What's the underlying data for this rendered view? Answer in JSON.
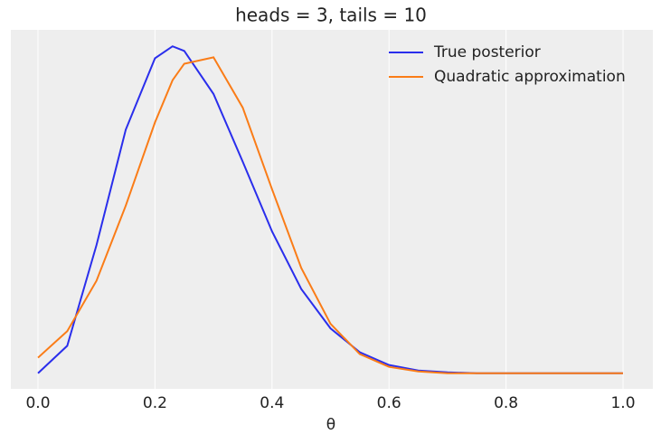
{
  "chart_data": {
    "type": "line",
    "title": "heads = 3, tails = 10",
    "x_label": "θ",
    "x": [
      0,
      0.05,
      0.1,
      0.15,
      0.2,
      0.23,
      0.25,
      0.3,
      0.35,
      0.4,
      0.45,
      0.5,
      0.55,
      0.6,
      0.65,
      0.7,
      0.75,
      0.8,
      0.85,
      0.9,
      0.95,
      1
    ],
    "series": [
      {
        "name": "True posterior",
        "color": "#2a2eec",
        "values": [
          0,
          0.3,
          1.4,
          2.66,
          3.44,
          3.57,
          3.52,
          3.05,
          2.31,
          1.55,
          0.92,
          0.49,
          0.23,
          0.09,
          0.03,
          0.01,
          0,
          0,
          0,
          0,
          0,
          0
        ]
      },
      {
        "name": "Quadratic approximation",
        "color": "#fa7c17",
        "values": [
          0.17,
          0.46,
          1.01,
          1.83,
          2.74,
          3.2,
          3.38,
          3.45,
          2.9,
          2.01,
          1.15,
          0.54,
          0.21,
          0.07,
          0.02,
          0,
          0,
          0,
          0,
          0,
          0,
          0
        ]
      }
    ],
    "xlim": [
      -0.0464,
      1.051
    ],
    "ylim": [
      -0.17,
      3.75
    ],
    "xticks": [
      {
        "value": 0,
        "label": "0.0"
      },
      0.2,
      0.4,
      0.6,
      0.8,
      {
        "value": 1,
        "label": "1.0"
      }
    ],
    "grid": true,
    "legend": "upper right"
  }
}
